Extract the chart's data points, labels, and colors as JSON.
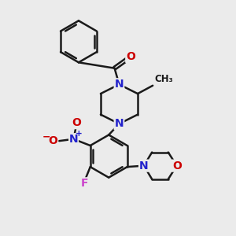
{
  "background_color": "#ebebeb",
  "bond_color": "#1a1a1a",
  "N_color": "#2222cc",
  "O_color": "#cc0000",
  "F_color": "#cc44cc",
  "bond_width": 1.8,
  "figsize": [
    3.0,
    3.0
  ],
  "dpi": 100,
  "xlim": [
    0,
    10
  ],
  "ylim": [
    0,
    10
  ]
}
